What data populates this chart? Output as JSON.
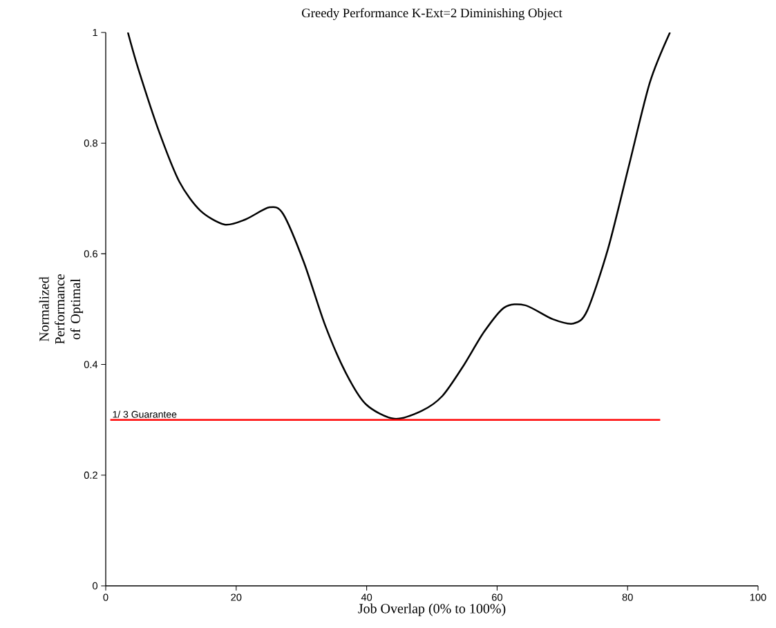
{
  "chart_data": {
    "type": "line",
    "title": "Greedy Performance K-Ext=2 Diminishing Object",
    "xlabel": "Job Overlap (0% to 100%)",
    "ylabel": "Normalized Performance of Optimal",
    "xlim": [
      0,
      100
    ],
    "ylim": [
      0,
      1
    ],
    "xticks": [
      0,
      20,
      40,
      60,
      80,
      100
    ],
    "yticks": [
      0,
      0.2,
      0.4,
      0.6,
      0.8,
      1
    ],
    "series": [
      {
        "color": "#000000",
        "x": [
          3.4,
          5.0,
          8.2,
          11.3,
          14.5,
          18.2,
          21.4,
          25.1,
          27.2,
          30.4,
          33.6,
          36.8,
          39.9,
          44.2,
          48.4,
          51.6,
          54.8,
          58.0,
          61.1,
          64.3,
          68.5,
          71.7,
          73.8,
          77.0,
          80.2,
          83.4,
          86.5
        ],
        "values": [
          1.0,
          0.934,
          0.82,
          0.73,
          0.678,
          0.653,
          0.662,
          0.684,
          0.672,
          0.584,
          0.472,
          0.385,
          0.328,
          0.302,
          0.316,
          0.343,
          0.397,
          0.459,
          0.503,
          0.507,
          0.482,
          0.474,
          0.497,
          0.609,
          0.759,
          0.909,
          1.0
        ]
      },
      {
        "name": "1/ 3 Guarantee",
        "color": "#ff0000",
        "x": [
          0.7,
          85
        ],
        "values": [
          0.3,
          0.3
        ]
      }
    ]
  }
}
